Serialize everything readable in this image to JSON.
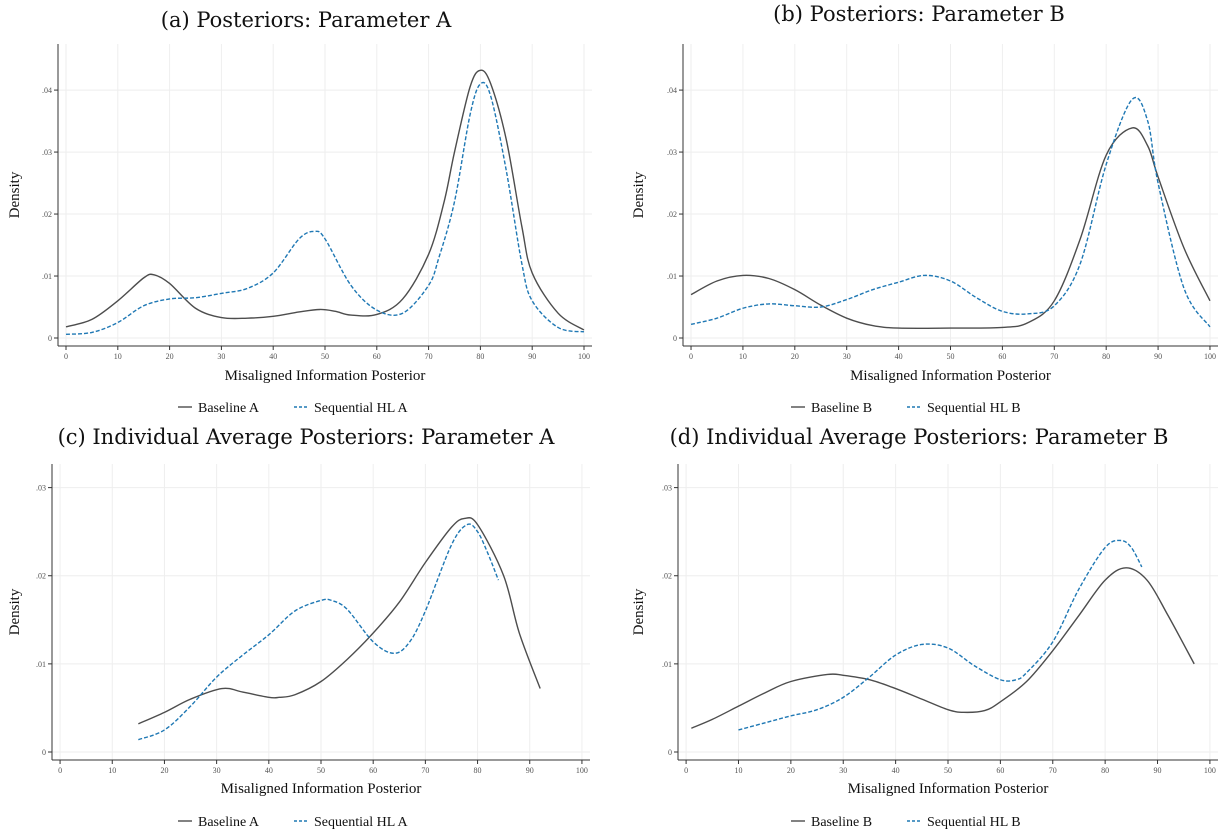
{
  "chart_data": [
    {
      "type": "line",
      "title": "(a) Posteriors: Parameter A",
      "xlabel": "Misaligned Information Posterior",
      "ylabel": "Density",
      "xlim": [
        0,
        100
      ],
      "ylim": [
        0,
        0.045
      ],
      "xticks": [
        0,
        10,
        20,
        30,
        40,
        50,
        60,
        70,
        80,
        90,
        100
      ],
      "xtick_labels": [
        "0",
        "10",
        "20",
        "30",
        "40",
        "50",
        "60",
        "70",
        "80",
        "90",
        "100"
      ],
      "yticks": [
        0,
        0.01,
        0.02,
        0.03,
        0.04
      ],
      "ytick_labels": [
        "0",
        ".01",
        ".02",
        ".03",
        ".04"
      ],
      "grid": true,
      "legend": "bottom",
      "series": [
        {
          "name": "Baseline A",
          "color": "#4d4d4d",
          "dash": "solid",
          "x": [
            0,
            5,
            10,
            15,
            17,
            20,
            25,
            30,
            35,
            40,
            45,
            49,
            52,
            55,
            60,
            65,
            70,
            73,
            75,
            78,
            80,
            82,
            85,
            88,
            90,
            95,
            100
          ],
          "y": [
            0.0018,
            0.003,
            0.006,
            0.0097,
            0.0102,
            0.0088,
            0.0048,
            0.0033,
            0.0032,
            0.0035,
            0.0042,
            0.0046,
            0.0043,
            0.0037,
            0.0038,
            0.0063,
            0.0135,
            0.022,
            0.03,
            0.0405,
            0.0432,
            0.041,
            0.032,
            0.018,
            0.0105,
            0.004,
            0.0013
          ]
        },
        {
          "name": "Sequential HL A",
          "color": "#1f78b4",
          "dash": "dashed",
          "x": [
            0,
            5,
            10,
            15,
            20,
            25,
            30,
            35,
            40,
            45,
            48,
            50,
            55,
            60,
            65,
            70,
            72,
            75,
            78,
            80,
            82,
            85,
            88,
            90,
            95,
            100
          ],
          "y": [
            0.0006,
            0.0009,
            0.0025,
            0.0052,
            0.0063,
            0.0065,
            0.0072,
            0.008,
            0.0105,
            0.016,
            0.0172,
            0.016,
            0.0085,
            0.0045,
            0.004,
            0.0085,
            0.013,
            0.022,
            0.036,
            0.041,
            0.039,
            0.027,
            0.012,
            0.006,
            0.0017,
            0.001
          ]
        }
      ]
    },
    {
      "type": "line",
      "title": "(b) Posteriors: Parameter B",
      "xlabel": "Misaligned Information Posterior",
      "ylabel": "Density",
      "xlim": [
        0,
        100
      ],
      "ylim": [
        0,
        0.045
      ],
      "xticks": [
        0,
        10,
        20,
        30,
        40,
        50,
        60,
        70,
        80,
        90,
        100
      ],
      "xtick_labels": [
        "0",
        "10",
        "20",
        "30",
        "40",
        "50",
        "60",
        "70",
        "80",
        "90",
        "100"
      ],
      "yticks": [
        0,
        0.01,
        0.02,
        0.03,
        0.04
      ],
      "ytick_labels": [
        "0",
        ".01",
        ".02",
        ".03",
        ".04"
      ],
      "grid": true,
      "legend": "bottom",
      "series": [
        {
          "name": "Baseline B",
          "color": "#4d4d4d",
          "dash": "solid",
          "x": [
            0,
            5,
            10,
            15,
            20,
            25,
            30,
            35,
            40,
            50,
            60,
            65,
            70,
            75,
            80,
            85,
            88,
            90,
            95,
            100
          ],
          "y": [
            0.007,
            0.0092,
            0.0101,
            0.0096,
            0.0078,
            0.0053,
            0.0032,
            0.002,
            0.0016,
            0.0016,
            0.0017,
            0.0025,
            0.006,
            0.016,
            0.0295,
            0.0339,
            0.031,
            0.026,
            0.0145,
            0.006
          ]
        },
        {
          "name": "Sequential HL B",
          "color": "#1f78b4",
          "dash": "dashed",
          "x": [
            0,
            5,
            10,
            15,
            20,
            25,
            30,
            35,
            40,
            45,
            50,
            55,
            60,
            65,
            70,
            75,
            80,
            85,
            88,
            90,
            95,
            100
          ],
          "y": [
            0.0022,
            0.0032,
            0.0048,
            0.0055,
            0.0052,
            0.005,
            0.0062,
            0.0078,
            0.009,
            0.0101,
            0.0092,
            0.0065,
            0.0043,
            0.0039,
            0.0052,
            0.012,
            0.028,
            0.0385,
            0.035,
            0.025,
            0.008,
            0.0018
          ]
        }
      ]
    },
    {
      "type": "line",
      "title": "(c) Individual Average Posteriors: Parameter A",
      "xlabel": "Misaligned Information Posterior",
      "ylabel": "Density",
      "xlim": [
        0,
        100
      ],
      "ylim": [
        0,
        0.031
      ],
      "xticks": [
        0,
        10,
        20,
        30,
        40,
        50,
        60,
        70,
        80,
        90,
        100
      ],
      "xtick_labels": [
        "0",
        "10",
        "20",
        "30",
        "40",
        "50",
        "60",
        "70",
        "80",
        "90",
        "100"
      ],
      "yticks": [
        0,
        0.01,
        0.02,
        0.03
      ],
      "ytick_labels": [
        "0",
        ".01",
        ".02",
        ".03"
      ],
      "grid": true,
      "legend": "bottom",
      "series": [
        {
          "name": "Baseline A",
          "color": "#4d4d4d",
          "dash": "solid",
          "x": [
            15,
            20,
            25,
            31,
            35,
            40,
            42,
            45,
            50,
            55,
            60,
            65,
            70,
            75,
            77.5,
            80,
            85,
            88,
            92
          ],
          "y": [
            0.0032,
            0.0045,
            0.006,
            0.0072,
            0.0068,
            0.0062,
            0.0062,
            0.0065,
            0.008,
            0.0105,
            0.0135,
            0.017,
            0.0215,
            0.0255,
            0.0265,
            0.0258,
            0.02,
            0.0135,
            0.0072
          ]
        },
        {
          "name": "Sequential HL A",
          "color": "#1f78b4",
          "dash": "dashed",
          "x": [
            15,
            20,
            25,
            30,
            35,
            40,
            45,
            50,
            52,
            55,
            60,
            64,
            67,
            70,
            75,
            78,
            80,
            82,
            84
          ],
          "y": [
            0.0014,
            0.0025,
            0.0052,
            0.0085,
            0.011,
            0.0133,
            0.016,
            0.0172,
            0.0172,
            0.0162,
            0.0125,
            0.0112,
            0.0125,
            0.016,
            0.0235,
            0.0258,
            0.025,
            0.0225,
            0.0195
          ]
        }
      ]
    },
    {
      "type": "line",
      "title": "(d) Individual Average Posteriors: Parameter B",
      "xlabel": "Misaligned Information Posterior",
      "ylabel": "Density",
      "xlim": [
        0,
        100
      ],
      "ylim": [
        0,
        0.031
      ],
      "xticks": [
        0,
        10,
        20,
        30,
        40,
        50,
        60,
        70,
        80,
        90,
        100
      ],
      "xtick_labels": [
        "0",
        "10",
        "20",
        "30",
        "40",
        "50",
        "60",
        "70",
        "80",
        "90",
        "100"
      ],
      "yticks": [
        0,
        0.01,
        0.02,
        0.03
      ],
      "ytick_labels": [
        "0",
        ".01",
        ".02",
        ".03"
      ],
      "grid": true,
      "legend": "bottom",
      "series": [
        {
          "name": "Baseline B",
          "color": "#4d4d4d",
          "dash": "solid",
          "x": [
            1,
            5,
            10,
            15,
            20,
            27,
            30,
            35,
            40,
            45,
            50,
            53,
            57,
            60,
            65,
            70,
            75,
            80,
            84,
            88,
            92,
            97
          ],
          "y": [
            0.0027,
            0.0037,
            0.0052,
            0.0067,
            0.008,
            0.0088,
            0.0087,
            0.0082,
            0.0072,
            0.006,
            0.0048,
            0.0045,
            0.0047,
            0.0057,
            0.008,
            0.0115,
            0.0155,
            0.0195,
            0.0209,
            0.0195,
            0.0155,
            0.01
          ]
        },
        {
          "name": "Sequential HL B",
          "color": "#1f78b4",
          "dash": "dashed",
          "x": [
            10,
            15,
            20,
            25,
            30,
            35,
            40,
            45,
            50,
            55,
            60,
            63,
            65,
            70,
            75,
            80,
            83,
            85,
            87
          ],
          "y": [
            0.0025,
            0.0033,
            0.0041,
            0.0048,
            0.0062,
            0.0085,
            0.011,
            0.0122,
            0.0118,
            0.0098,
            0.0082,
            0.0082,
            0.009,
            0.0125,
            0.0185,
            0.0232,
            0.024,
            0.0232,
            0.021
          ]
        }
      ]
    }
  ]
}
